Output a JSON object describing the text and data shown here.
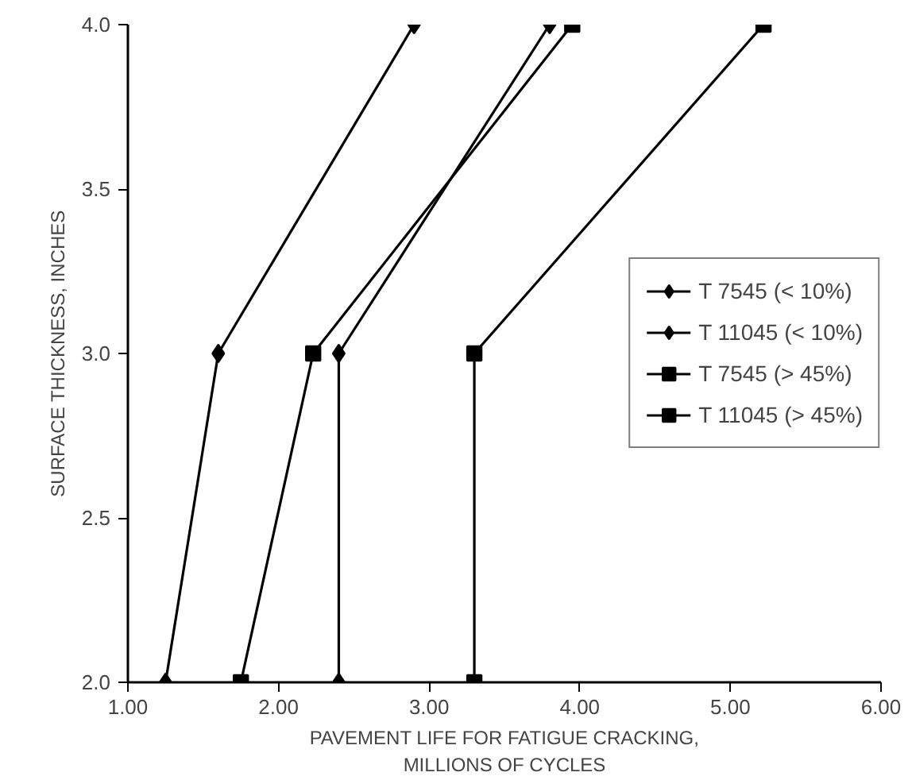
{
  "chart_data": {
    "type": "line",
    "xlabel": "PAVEMENT LIFE FOR FATIGUE CRACKING,\nMILLIONS OF CYCLES",
    "ylabel": "SURFACE THICKNESS, INCHES",
    "xlim": [
      1,
      6
    ],
    "ylim": [
      2,
      4
    ],
    "xticks": [
      {
        "value": 1,
        "label": "1.00"
      },
      {
        "value": 2,
        "label": "2.00"
      },
      {
        "value": 3,
        "label": "3.00"
      },
      {
        "value": 4,
        "label": "4.00"
      },
      {
        "value": 5,
        "label": "5.00"
      },
      {
        "value": 6,
        "label": "6.00"
      }
    ],
    "yticks": [
      {
        "value": 2,
        "label": "2.0"
      },
      {
        "value": 2.5,
        "label": "2.5"
      },
      {
        "value": 3,
        "label": "3.0"
      },
      {
        "value": 3.5,
        "label": "3.5"
      },
      {
        "value": 4,
        "label": "4.0"
      }
    ],
    "grid": false,
    "legend": "right",
    "line_style": "solid",
    "series": [
      {
        "name": "T 7545 (< 10%)",
        "color": "#000000",
        "marker": "diamond",
        "x": [
          2.4,
          2.4,
          3.8
        ],
        "values": [
          2.0,
          3.0,
          4.0
        ]
      },
      {
        "name": "T 11045 (< 10%)",
        "color": "#000000",
        "marker": "diamond",
        "x": [
          1.25,
          1.6,
          2.9
        ],
        "values": [
          2.0,
          3.0,
          4.0
        ]
      },
      {
        "name": "T 7545 (> 45%)",
        "color": "#000000",
        "marker": "square",
        "x": [
          3.3,
          3.3,
          5.22
        ],
        "values": [
          2.0,
          3.0,
          4.0
        ]
      },
      {
        "name": "T 11045 (> 45%)",
        "color": "#000000",
        "marker": "square",
        "x": [
          1.75,
          2.23,
          3.95
        ],
        "values": [
          2.0,
          3.0,
          4.0
        ]
      }
    ]
  }
}
